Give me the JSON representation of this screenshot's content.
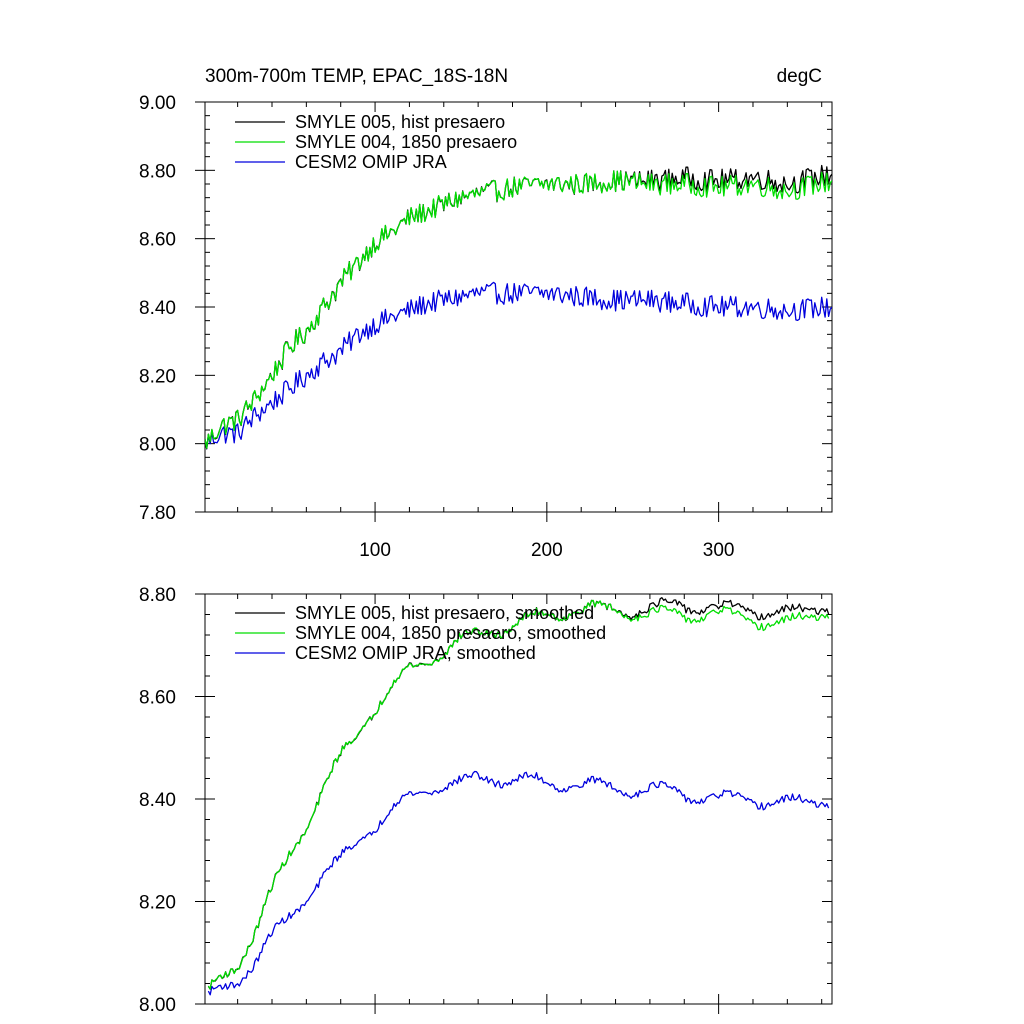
{
  "chart_data": [
    {
      "type": "line",
      "title_left": "300m-700m TEMP, EPAC_18S-18N",
      "title_right": "degC",
      "xlim": [
        1,
        366
      ],
      "ylim": [
        7.8,
        9.0
      ],
      "x_major_ticks": [
        100,
        200,
        300
      ],
      "x_tick_labels": [
        "100",
        "200",
        "300"
      ],
      "y_major_ticks": [
        7.8,
        8.0,
        8.2,
        8.4,
        8.6,
        8.8,
        9.0
      ],
      "y_tick_labels": [
        "7.80",
        "8.00",
        "8.20",
        "8.40",
        "8.60",
        "8.80",
        "9.00"
      ],
      "legend_position": "top-left",
      "series": [
        {
          "name": "SMYLE 005, hist presaero",
          "color": "#000000",
          "x": [
            1,
            10,
            20,
            30,
            40,
            50,
            60,
            70,
            80,
            90,
            100,
            110,
            120,
            130,
            140,
            150,
            160,
            180,
            200,
            220,
            240,
            260,
            280,
            300,
            320,
            340,
            366
          ],
          "y": [
            8.0,
            8.05,
            8.07,
            8.13,
            8.2,
            8.28,
            8.33,
            8.4,
            8.47,
            8.53,
            8.59,
            8.62,
            8.66,
            8.68,
            8.7,
            8.72,
            8.73,
            8.75,
            8.76,
            8.76,
            8.77,
            8.77,
            8.78,
            8.77,
            8.78,
            8.76,
            8.79
          ]
        },
        {
          "name": "SMYLE 004, 1850 presaero",
          "color": "#00dd00",
          "x": [
            1,
            10,
            20,
            30,
            40,
            50,
            60,
            70,
            80,
            90,
            100,
            110,
            120,
            130,
            140,
            150,
            160,
            180,
            200,
            220,
            240,
            260,
            280,
            300,
            320,
            340,
            366
          ],
          "y": [
            8.0,
            8.05,
            8.07,
            8.13,
            8.2,
            8.28,
            8.33,
            8.4,
            8.47,
            8.53,
            8.59,
            8.62,
            8.66,
            8.68,
            8.7,
            8.72,
            8.73,
            8.75,
            8.76,
            8.76,
            8.77,
            8.76,
            8.76,
            8.75,
            8.76,
            8.74,
            8.77
          ]
        },
        {
          "name": "CESM2 OMIP JRA",
          "color": "#0000dd",
          "x": [
            1,
            10,
            20,
            30,
            40,
            50,
            60,
            70,
            80,
            90,
            100,
            110,
            120,
            130,
            140,
            150,
            160,
            180,
            200,
            220,
            240,
            260,
            280,
            300,
            320,
            340,
            366
          ],
          "y": [
            8.0,
            8.03,
            8.03,
            8.08,
            8.12,
            8.16,
            8.2,
            8.24,
            8.27,
            8.32,
            8.35,
            8.37,
            8.39,
            8.41,
            8.42,
            8.43,
            8.44,
            8.44,
            8.44,
            8.43,
            8.42,
            8.42,
            8.41,
            8.4,
            8.4,
            8.39,
            8.4
          ]
        }
      ]
    },
    {
      "type": "line",
      "xlim": [
        1,
        366
      ],
      "ylim": [
        8.0,
        8.8
      ],
      "x_major_ticks": [
        100,
        200,
        300
      ],
      "y_major_ticks": [
        8.0,
        8.2,
        8.4,
        8.6,
        8.8
      ],
      "y_tick_labels": [
        "8.00",
        "8.20",
        "8.40",
        "8.60",
        "8.80"
      ],
      "legend_position": "top-left",
      "series": [
        {
          "name": "SMYLE 005, hist presaero, smoothed",
          "color": "#000000",
          "x": [
            3,
            10,
            20,
            30,
            40,
            50,
            60,
            70,
            80,
            90,
            100,
            110,
            120,
            130,
            140,
            150,
            160,
            180,
            200,
            220,
            240,
            260,
            280,
            300,
            320,
            340,
            364
          ],
          "y": [
            8.02,
            8.05,
            8.08,
            8.14,
            8.22,
            8.29,
            8.35,
            8.42,
            8.48,
            8.53,
            8.58,
            8.62,
            8.65,
            8.67,
            8.69,
            8.71,
            8.72,
            8.74,
            8.76,
            8.77,
            8.77,
            8.77,
            8.78,
            8.77,
            8.77,
            8.76,
            8.78
          ]
        },
        {
          "name": "SMYLE 004, 1850 presaero, smoothed",
          "color": "#00dd00",
          "x": [
            3,
            10,
            20,
            30,
            40,
            50,
            60,
            70,
            80,
            90,
            100,
            110,
            120,
            130,
            140,
            150,
            160,
            180,
            200,
            220,
            240,
            260,
            280,
            300,
            320,
            340,
            364
          ],
          "y": [
            8.02,
            8.05,
            8.08,
            8.14,
            8.22,
            8.29,
            8.35,
            8.42,
            8.48,
            8.53,
            8.58,
            8.62,
            8.65,
            8.67,
            8.69,
            8.71,
            8.72,
            8.74,
            8.76,
            8.77,
            8.77,
            8.76,
            8.76,
            8.76,
            8.75,
            8.74,
            8.77
          ]
        },
        {
          "name": "CESM2 OMIP JRA, smoothed",
          "color": "#0000dd",
          "x": [
            3,
            10,
            20,
            30,
            40,
            50,
            60,
            70,
            80,
            90,
            100,
            110,
            120,
            130,
            140,
            150,
            160,
            180,
            200,
            220,
            240,
            260,
            280,
            300,
            320,
            340,
            364
          ],
          "y": [
            8.01,
            8.03,
            8.05,
            8.08,
            8.13,
            8.17,
            8.21,
            8.25,
            8.28,
            8.32,
            8.35,
            8.38,
            8.4,
            8.42,
            8.43,
            8.43,
            8.44,
            8.44,
            8.43,
            8.43,
            8.42,
            8.42,
            8.41,
            8.4,
            8.4,
            8.39,
            8.4
          ]
        }
      ]
    }
  ]
}
